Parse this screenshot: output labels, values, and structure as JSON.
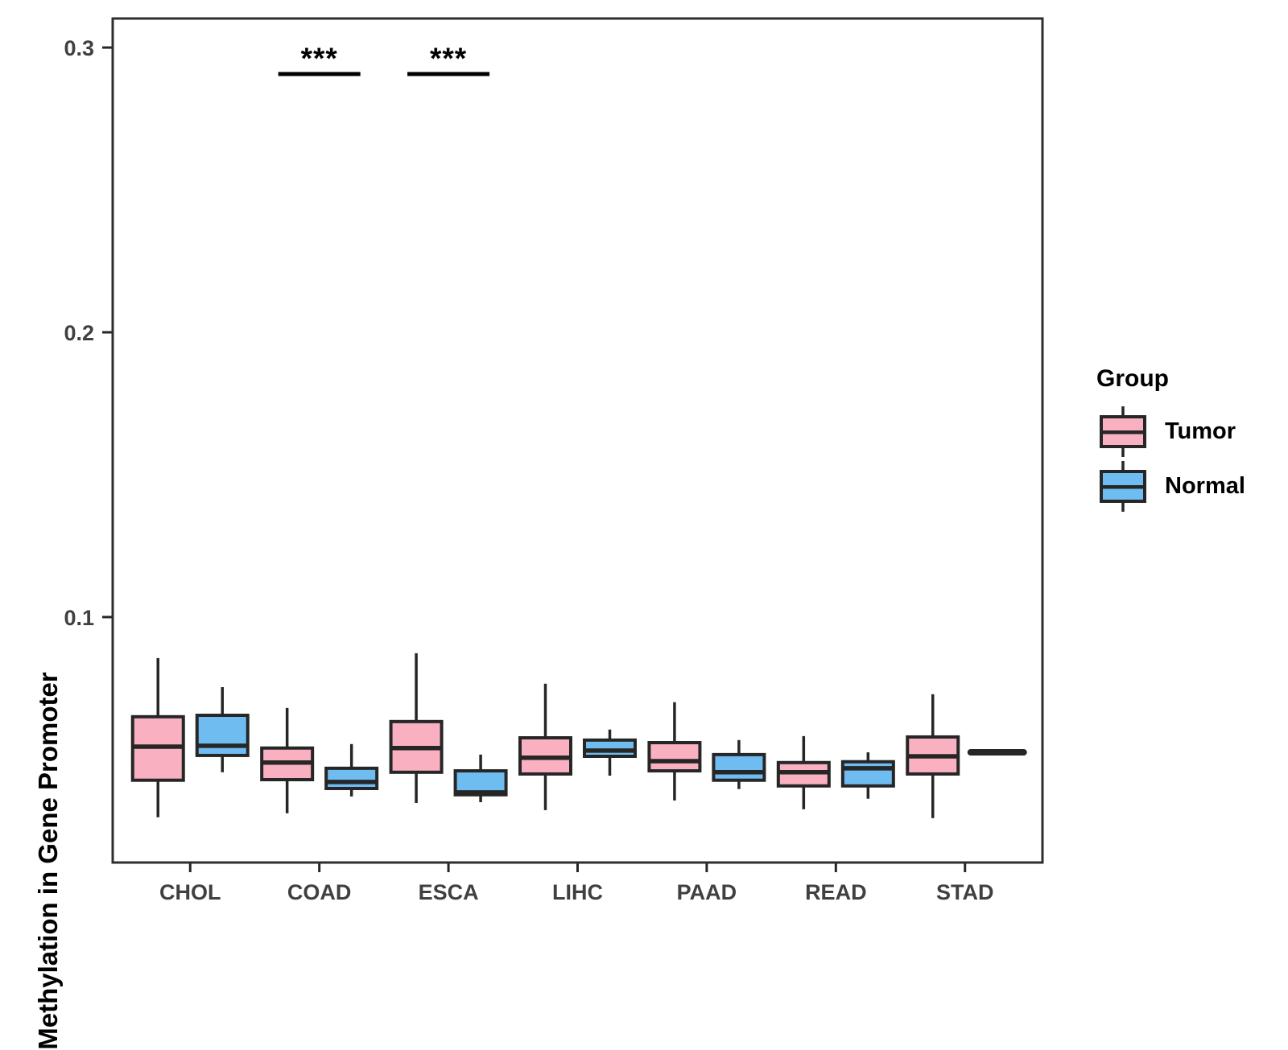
{
  "chart_data": {
    "type": "grouped_boxplot",
    "title": "",
    "xlabel": "",
    "ylabel": "Methylation in Gene Promoter",
    "categories": [
      "CHOL",
      "COAD",
      "ESCA",
      "LIHC",
      "PAAD",
      "READ",
      "STAD"
    ],
    "groups": [
      "Tumor",
      "Normal"
    ],
    "colors": {
      "Tumor": "#F9B0C1",
      "Normal": "#6FBCF1",
      "line": "#262626",
      "axis_text": "#404040",
      "border": "#2E2E2E"
    },
    "y_ticks": [
      {
        "value": 0.1,
        "label": "0.1"
      },
      {
        "value": 0.2,
        "label": "0.2"
      },
      {
        "value": 0.3,
        "label": "0.3"
      }
    ],
    "ylim": [
      0.0138,
      0.3102
    ],
    "grid": false,
    "legend_position": "right",
    "series": {
      "Tumor": [
        {
          "category": "CHOL",
          "min": 0.0297,
          "q1": 0.0427,
          "median": 0.0545,
          "q3": 0.065,
          "max": 0.0856
        },
        {
          "category": "COAD",
          "min": 0.0311,
          "q1": 0.0429,
          "median": 0.0489,
          "q3": 0.054,
          "max": 0.0681
        },
        {
          "category": "ESCA",
          "min": 0.0347,
          "q1": 0.0455,
          "median": 0.054,
          "q3": 0.0633,
          "max": 0.0873
        },
        {
          "category": "LIHC",
          "min": 0.0322,
          "q1": 0.0449,
          "median": 0.0506,
          "q3": 0.0576,
          "max": 0.0766
        },
        {
          "category": "PAAD",
          "min": 0.0356,
          "q1": 0.046,
          "median": 0.0494,
          "q3": 0.0559,
          "max": 0.0701
        },
        {
          "category": "READ",
          "min": 0.0325,
          "q1": 0.0407,
          "median": 0.0455,
          "q3": 0.0489,
          "max": 0.0582
        },
        {
          "category": "STAD",
          "min": 0.0294,
          "q1": 0.0449,
          "median": 0.0511,
          "q3": 0.0579,
          "max": 0.0729
        }
      ],
      "Normal": [
        {
          "category": "CHOL",
          "min": 0.0455,
          "q1": 0.0514,
          "median": 0.0548,
          "q3": 0.0655,
          "max": 0.0754
        },
        {
          "category": "COAD",
          "min": 0.037,
          "q1": 0.0398,
          "median": 0.0421,
          "q3": 0.0469,
          "max": 0.0554
        },
        {
          "category": "ESCA",
          "min": 0.035,
          "q1": 0.0376,
          "median": 0.0384,
          "q3": 0.046,
          "max": 0.0517
        },
        {
          "category": "LIHC",
          "min": 0.0443,
          "q1": 0.0511,
          "median": 0.0531,
          "q3": 0.0568,
          "max": 0.0605
        },
        {
          "category": "PAAD",
          "min": 0.0396,
          "q1": 0.0427,
          "median": 0.0455,
          "q3": 0.0517,
          "max": 0.0568
        },
        {
          "category": "READ",
          "min": 0.0362,
          "q1": 0.0407,
          "median": 0.0469,
          "q3": 0.0492,
          "max": 0.0525
        },
        {
          "category": "STAD",
          "min": 0.0525,
          "q1": 0.0525,
          "median": 0.0525,
          "q3": 0.0525,
          "max": 0.0525
        }
      ]
    },
    "significance": {
      "bar_value": 0.2907,
      "items": [
        {
          "category": "COAD",
          "label": "***"
        },
        {
          "category": "ESCA",
          "label": "***"
        }
      ]
    },
    "legend": {
      "title": "Group",
      "items": [
        {
          "label": "Tumor",
          "group": "Tumor"
        },
        {
          "label": "Normal",
          "group": "Normal"
        }
      ]
    }
  }
}
